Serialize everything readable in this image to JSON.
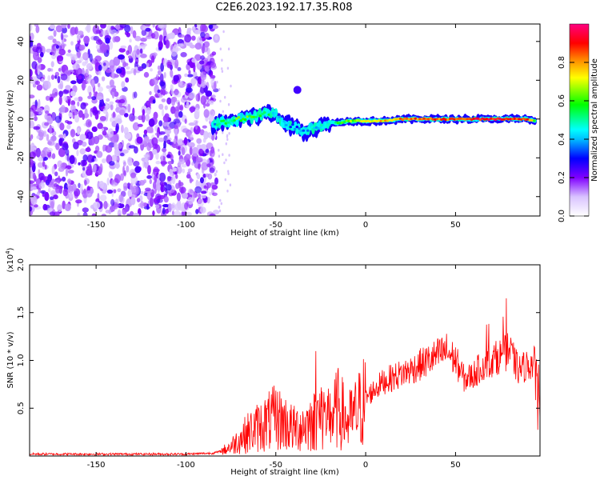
{
  "title": "C2E6.2023.192.17.35.R08",
  "chart_data": [
    {
      "type": "heatmap",
      "xlabel": "Height of straight line (km)",
      "ylabel": "Frequency (Hz)",
      "xlim": [
        -187,
        97
      ],
      "ylim": [
        -50,
        49
      ],
      "xticks": [
        -150,
        -100,
        -50,
        0,
        50
      ],
      "yticks": [
        -40,
        -20,
        0,
        20,
        40
      ],
      "colorbar": {
        "label": "Normalized spectral amplitude",
        "range": [
          0,
          1
        ],
        "ticks": [
          "0.0",
          "0.2",
          "0.4",
          "0.6",
          "0.8"
        ],
        "tick_values": [
          0.0,
          0.2,
          0.4,
          0.6,
          0.8
        ],
        "colors": [
          "#ffffff",
          "#d9c3ff",
          "#8000ff",
          "#0000ff",
          "#00bfff",
          "#00ffff",
          "#00ff00",
          "#ffff00",
          "#ff8000",
          "#ff0000",
          "#ff0080"
        ]
      },
      "noise_region": {
        "x_from": -187,
        "x_to": -83,
        "amplitude": 0.25
      },
      "signal_track": [
        {
          "x": -85,
          "freq": -3,
          "amp": 0.4
        },
        {
          "x": -80,
          "freq": -2,
          "amp": 0.5
        },
        {
          "x": -75,
          "freq": -1,
          "amp": 0.55
        },
        {
          "x": -70,
          "freq": 0,
          "amp": 0.6
        },
        {
          "x": -65,
          "freq": 1,
          "amp": 0.6
        },
        {
          "x": -60,
          "freq": 2,
          "amp": 0.55
        },
        {
          "x": -55,
          "freq": 3,
          "amp": 0.5
        },
        {
          "x": -50,
          "freq": 2,
          "amp": 0.45
        },
        {
          "x": -45,
          "freq": -2,
          "amp": 0.4
        },
        {
          "x": -40,
          "freq": -4,
          "amp": 0.35
        },
        {
          "x": -35,
          "freq": -6,
          "amp": 0.35
        },
        {
          "x": -30,
          "freq": -5,
          "amp": 0.4
        },
        {
          "x": -25,
          "freq": -4,
          "amp": 0.45
        },
        {
          "x": -20,
          "freq": -2,
          "amp": 0.5
        },
        {
          "x": -15,
          "freq": -2,
          "amp": 0.55
        },
        {
          "x": -10,
          "freq": -1,
          "amp": 0.6
        },
        {
          "x": -5,
          "freq": -1,
          "amp": 0.65
        },
        {
          "x": 0,
          "freq": -1,
          "amp": 0.7
        },
        {
          "x": 5,
          "freq": -1,
          "amp": 0.72
        },
        {
          "x": 10,
          "freq": -1,
          "amp": 0.75
        },
        {
          "x": 20,
          "freq": 0,
          "amp": 0.8
        },
        {
          "x": 30,
          "freq": 0,
          "amp": 0.85
        },
        {
          "x": 40,
          "freq": 0,
          "amp": 0.85
        },
        {
          "x": 50,
          "freq": 0,
          "amp": 0.85
        },
        {
          "x": 60,
          "freq": 0,
          "amp": 0.9
        },
        {
          "x": 70,
          "freq": 0,
          "amp": 0.9
        },
        {
          "x": 80,
          "freq": 0,
          "amp": 0.88
        },
        {
          "x": 90,
          "freq": 0,
          "amp": 0.85
        },
        {
          "x": 95,
          "freq": -1,
          "amp": 0.6
        }
      ],
      "features": [
        {
          "x": -38,
          "freq": 15,
          "amp": 0.25
        }
      ]
    },
    {
      "type": "line",
      "xlabel": "Height of straight line (km)",
      "ylabel": "SNR (10 * v/v)",
      "y_multiplier": "(x10^4)",
      "xlim": [
        -187,
        97
      ],
      "ylim": [
        0,
        20000
      ],
      "xticks": [
        -150,
        -100,
        -50,
        0,
        50
      ],
      "yticks": [
        5000,
        10000,
        15000,
        20000
      ],
      "ytick_labels": [
        "0.5",
        "1.0",
        "1.5",
        "2.0"
      ],
      "series": [
        {
          "color": "#ff0000",
          "x": [
            -187,
            -150,
            -100,
            -85,
            -80,
            -75,
            -70,
            -65,
            -60,
            -55,
            -50,
            -45,
            -40,
            -35,
            -30,
            -25,
            -20,
            -15,
            -10,
            -5,
            0,
            5,
            10,
            15,
            20,
            25,
            30,
            35,
            40,
            45,
            50,
            55,
            60,
            65,
            70,
            75,
            80,
            85,
            90,
            95,
            97
          ],
          "y": [
            200,
            200,
            200,
            300,
            500,
            1000,
            1800,
            2500,
            3000,
            3500,
            4000,
            3500,
            2800,
            3200,
            3500,
            4500,
            4000,
            5000,
            3500,
            4500,
            6000,
            7000,
            7800,
            8200,
            8600,
            9000,
            9500,
            10000,
            10500,
            11000,
            10000,
            8000,
            8500,
            9500,
            10000,
            10500,
            11000,
            9000,
            9500,
            9800,
            4000
          ]
        }
      ]
    }
  ]
}
